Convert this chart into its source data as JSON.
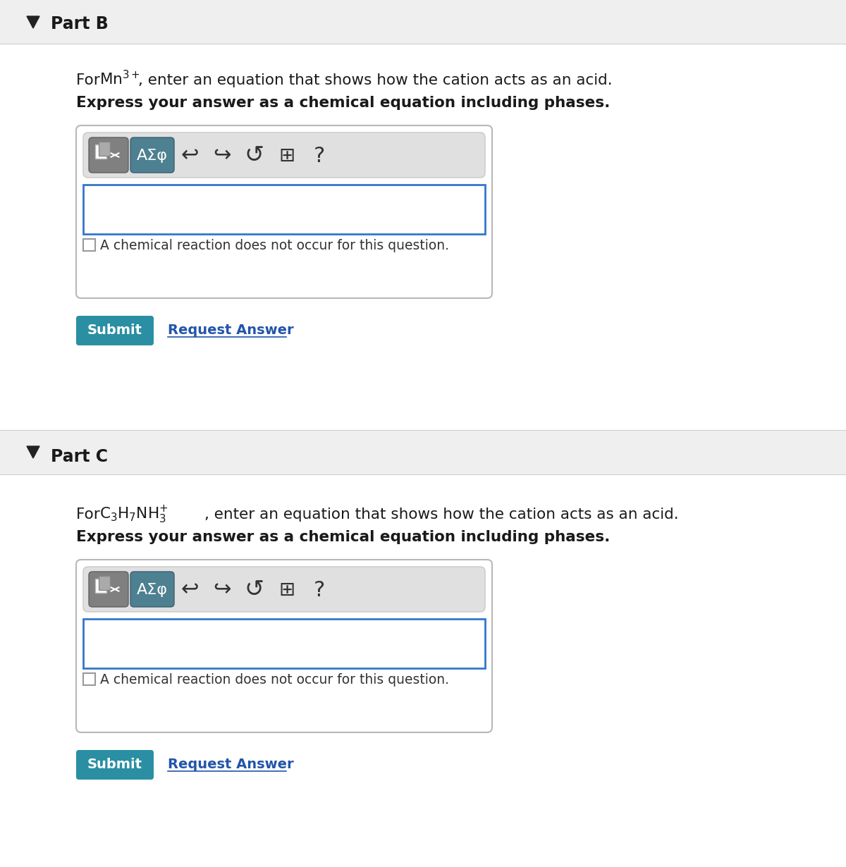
{
  "bg_color": "#efefef",
  "white": "#ffffff",
  "part_b_title": "Part B",
  "part_c_title": "Part C",
  "checkbox_text": "A chemical reaction does not occur for this question.",
  "submit_color": "#2a8fa3",
  "submit_text": "Submit",
  "request_answer_text": "Request Answer",
  "request_answer_color": "#2255aa",
  "input_border_color": "#3377cc",
  "panel_border_color": "#b8b8b8",
  "triangle_color": "#222222",
  "separator_color": "#cccccc",
  "toolbar_bg": "#dedede",
  "btn1_color": "#888888",
  "btn2_color": "#5a8090",
  "icon_color": "#333333"
}
